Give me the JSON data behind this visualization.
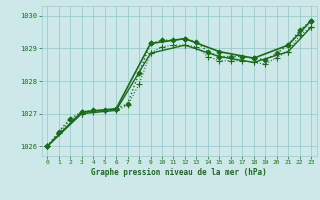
{
  "bg_color": "#cce8e8",
  "grid_color": "#99cccc",
  "line_color": "#1a6b1a",
  "xlabel": "Graphe pression niveau de la mer (hPa)",
  "xlim": [
    -0.5,
    23.5
  ],
  "ylim": [
    1025.7,
    1030.3
  ],
  "yticks": [
    1026,
    1027,
    1028,
    1029,
    1030
  ],
  "xticks": [
    0,
    1,
    2,
    3,
    4,
    5,
    6,
    7,
    8,
    9,
    10,
    11,
    12,
    13,
    14,
    15,
    16,
    17,
    18,
    19,
    20,
    21,
    22,
    23
  ],
  "series": [
    {
      "x": [
        0,
        1,
        2,
        3,
        4,
        5,
        6,
        7,
        8,
        9,
        10,
        11,
        12,
        13,
        14,
        15,
        16,
        17,
        18,
        19,
        20,
        21,
        22,
        23
      ],
      "y": [
        1026.0,
        1026.45,
        1026.85,
        1027.05,
        1027.1,
        1027.1,
        1027.15,
        1027.3,
        1028.25,
        1029.15,
        1029.25,
        1029.25,
        1029.3,
        1029.2,
        1028.9,
        1028.75,
        1028.75,
        1028.75,
        1028.7,
        1028.65,
        1028.85,
        1029.1,
        1029.55,
        1029.85
      ],
      "marker": "D",
      "markersize": 2.5,
      "linestyle": ":",
      "linewidth": 1.0
    },
    {
      "x": [
        0,
        1,
        2,
        3,
        4,
        5,
        6,
        7,
        8,
        9,
        10,
        11,
        12,
        13,
        14,
        15,
        16,
        17,
        18,
        19,
        20,
        21,
        22,
        23
      ],
      "y": [
        1026.0,
        1026.4,
        1026.8,
        1027.0,
        1027.05,
        1027.08,
        1027.1,
        1027.25,
        1027.9,
        1028.85,
        1029.05,
        1029.1,
        1029.1,
        1029.05,
        1028.75,
        1028.62,
        1028.62,
        1028.62,
        1028.57,
        1028.52,
        1028.72,
        1028.9,
        1029.4,
        1029.65
      ],
      "marker": "+",
      "markersize": 4,
      "linestyle": ":",
      "linewidth": 0.8
    },
    {
      "x": [
        0,
        3,
        6,
        9,
        12,
        15,
        18,
        21,
        23
      ],
      "y": [
        1026.0,
        1027.0,
        1027.1,
        1028.85,
        1029.1,
        1028.75,
        1028.57,
        1028.9,
        1029.65
      ],
      "marker": "+",
      "markersize": 4,
      "linestyle": "-",
      "linewidth": 1.0
    },
    {
      "x": [
        0,
        3,
        6,
        9,
        12,
        15,
        18,
        21,
        23
      ],
      "y": [
        1026.0,
        1027.05,
        1027.15,
        1029.15,
        1029.3,
        1028.9,
        1028.7,
        1029.1,
        1029.85
      ],
      "marker": "D",
      "markersize": 2.5,
      "linestyle": "-",
      "linewidth": 1.2
    }
  ]
}
